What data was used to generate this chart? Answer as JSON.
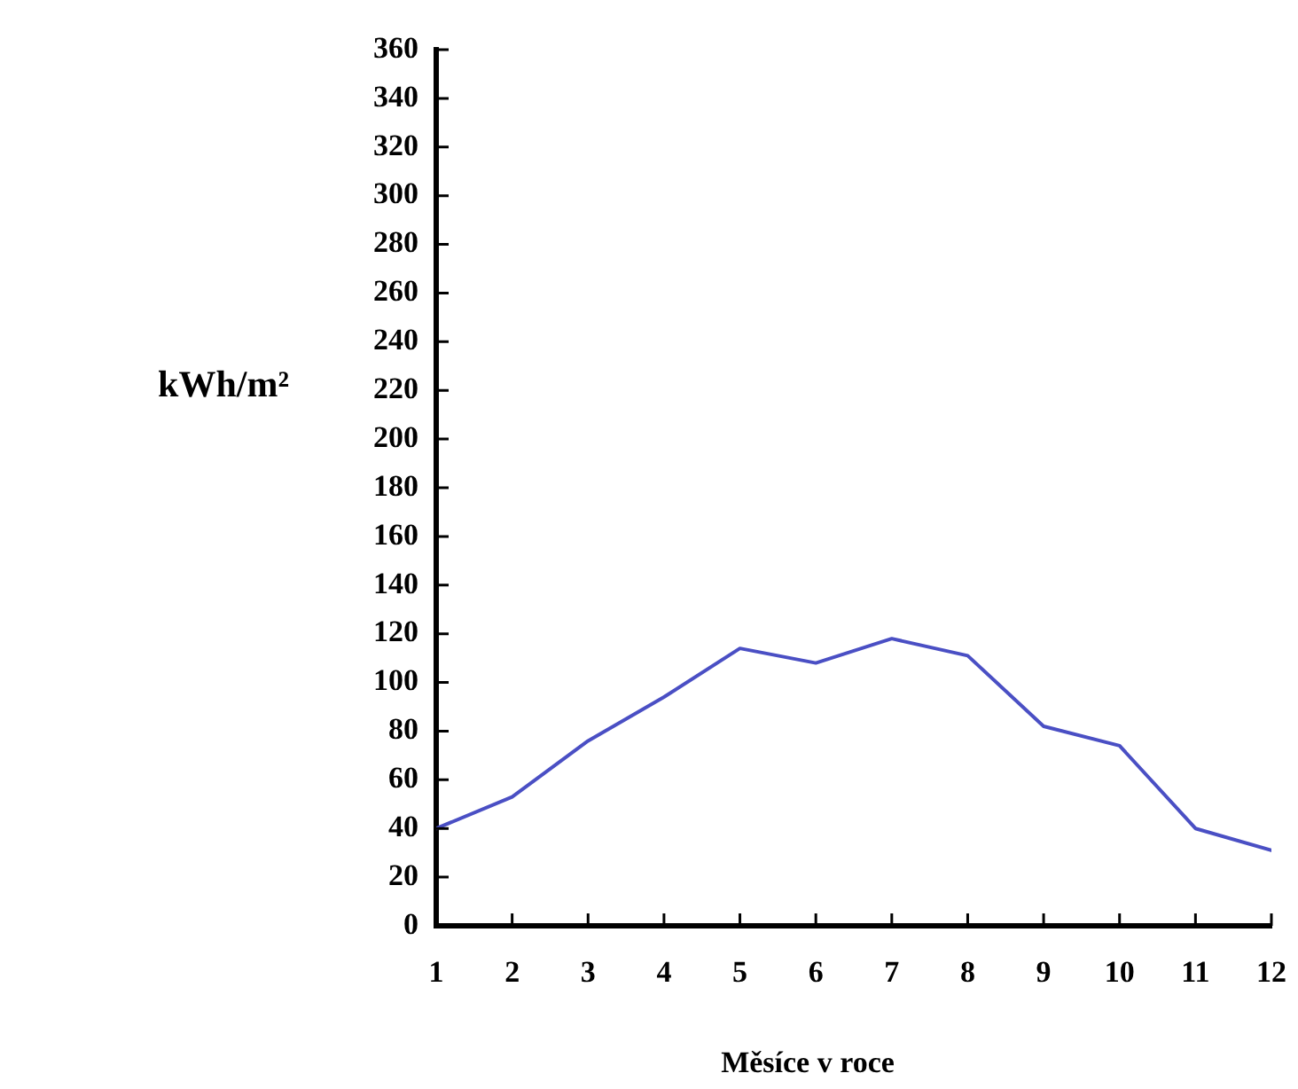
{
  "chart_data": {
    "type": "line",
    "xlabel": "Měsíce v roce",
    "ylabel": "kWh/m²",
    "x": [
      1,
      2,
      3,
      4,
      5,
      6,
      7,
      8,
      9,
      10,
      11,
      12
    ],
    "series": [
      {
        "color": "#4a4fc4",
        "values": [
          40,
          53,
          76,
          94,
          114,
          108,
          118,
          111,
          82,
          74,
          40,
          31
        ]
      }
    ],
    "xlim": [
      1,
      12
    ],
    "xticks": [
      1,
      2,
      3,
      4,
      5,
      6,
      7,
      8,
      9,
      10,
      11,
      12
    ],
    "ylim": [
      0,
      360
    ],
    "yticks": [
      0,
      20,
      40,
      60,
      80,
      100,
      120,
      140,
      160,
      180,
      200,
      220,
      240,
      260,
      280,
      300,
      320,
      340,
      360
    ]
  }
}
